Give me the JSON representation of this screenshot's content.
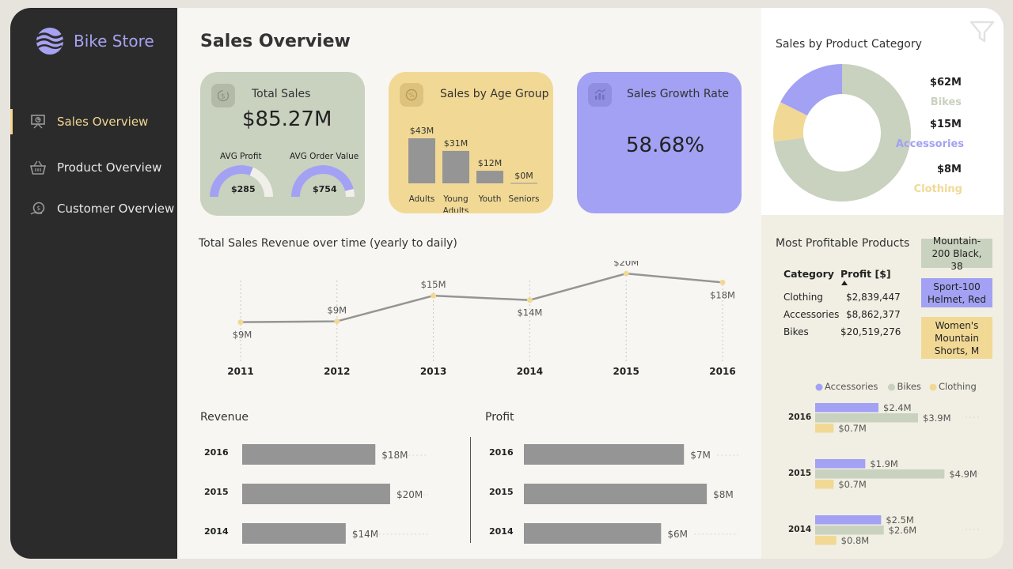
{
  "brand": {
    "name": "Bike Store"
  },
  "nav": {
    "items": [
      {
        "label": "Sales Overview",
        "icon": "presentation-icon",
        "active": true
      },
      {
        "label": "Product Overview",
        "icon": "basket-icon",
        "active": false
      },
      {
        "label": "Customer Overview",
        "icon": "customer-cash-icon",
        "active": false
      }
    ]
  },
  "page": {
    "title": "Sales Overview"
  },
  "kpi": {
    "total_sales": {
      "title": "Total Sales",
      "value": "$85.27M",
      "avg_profit_label": "AVG Profit",
      "avg_profit_value": "$285",
      "avg_profit_fill": 0.62,
      "avg_order_label": "AVG Order Value",
      "avg_order_value": "$754",
      "avg_order_fill": 0.92
    },
    "age_group": {
      "title": "Sales by Age Group"
    },
    "growth": {
      "title": "Sales Growth Rate",
      "value": "58.68%"
    }
  },
  "line_section": {
    "title": "Total Sales Revenue over time (yearly to daily)"
  },
  "revenue_section": {
    "title": "Revenue"
  },
  "profit_section": {
    "title": "Profit"
  },
  "donut_section": {
    "title": "Sales by Product Category",
    "labels": [
      {
        "amount": "$62M",
        "name": "Bikes",
        "color": "#c9d1bf"
      },
      {
        "amount": "$15M",
        "name": "Accessories",
        "color": "#a2a1f3"
      },
      {
        "amount": "$8M",
        "name": "Clothing",
        "color": "#f1d995"
      }
    ]
  },
  "profitable": {
    "title": "Most Profitable Products",
    "col_category": "Category",
    "col_profit": "Profit [$]",
    "rows": [
      {
        "category": "Clothing",
        "profit": "$2,839,447"
      },
      {
        "category": "Accessories",
        "profit": "$8,862,377"
      },
      {
        "category": "Bikes",
        "profit": "$20,519,276"
      }
    ],
    "tags": [
      {
        "label": "Mountain-200 Black, 38",
        "color": "#c9d1bf"
      },
      {
        "label": "Sport-100 Helmet, Red",
        "color": "#a2a1f3"
      },
      {
        "label": "Women's Mountain Shorts, M",
        "color": "#f1d995"
      }
    ]
  },
  "chart_data": [
    {
      "id": "age_group",
      "type": "bar",
      "categories": [
        "Adults",
        "Young Adults",
        "Youth",
        "Seniors"
      ],
      "values": [
        43,
        31,
        12,
        0
      ],
      "data_labels": [
        "$43M",
        "$31M",
        "$12M",
        "$0M"
      ],
      "color": "#959595"
    },
    {
      "id": "sales_over_time",
      "type": "line",
      "x": [
        "2011",
        "2012",
        "2013",
        "2014",
        "2015",
        "2016"
      ],
      "y": [
        9,
        9.2,
        15,
        14,
        20,
        18
      ],
      "data_labels": [
        "$9M",
        "$9M",
        "$15M",
        "$14M",
        "$20M",
        "$18M"
      ],
      "line_color": "#959595",
      "marker_color": "#f1d995",
      "ylim": [
        0,
        22
      ]
    },
    {
      "id": "revenue_by_year",
      "type": "bar",
      "orientation": "horizontal",
      "categories": [
        "2016",
        "2015",
        "2014"
      ],
      "values": [
        18,
        20,
        14
      ],
      "data_labels": [
        "$18M",
        "$20M",
        "$14M"
      ],
      "xlim": [
        0,
        23
      ],
      "color": "#959595"
    },
    {
      "id": "profit_by_year",
      "type": "bar",
      "orientation": "horizontal",
      "categories": [
        "2016",
        "2015",
        "2014"
      ],
      "values": [
        7,
        8,
        6
      ],
      "data_labels": [
        "$7M",
        "$8M",
        "$6M"
      ],
      "xlim": [
        0,
        9
      ],
      "color": "#959595"
    },
    {
      "id": "sales_by_category",
      "type": "pie",
      "categories": [
        "Bikes",
        "Clothing",
        "Accessories"
      ],
      "values": [
        62,
        8,
        15
      ],
      "colors": [
        "#c9d1bf",
        "#f1d995",
        "#a2a1f3"
      ]
    },
    {
      "id": "profit_by_category_year",
      "type": "bar",
      "orientation": "horizontal",
      "categories": [
        "2016",
        "2015",
        "2014"
      ],
      "series": [
        {
          "name": "Accessories",
          "color": "#a2a1f3",
          "values": [
            2.4,
            1.9,
            2.5
          ],
          "labels": [
            "$2.4M",
            "$1.9M",
            "$2.5M"
          ]
        },
        {
          "name": "Bikes",
          "color": "#c9d1bf",
          "values": [
            3.9,
            4.9,
            2.6
          ],
          "labels": [
            "$3.9M",
            "$4.9M",
            "$2.6M"
          ]
        },
        {
          "name": "Clothing",
          "color": "#f1d995",
          "values": [
            0.7,
            0.7,
            0.8
          ],
          "labels": [
            "$0.7M",
            "$0.7M",
            "$0.8M"
          ]
        }
      ],
      "xlim": [
        0,
        6
      ]
    }
  ]
}
